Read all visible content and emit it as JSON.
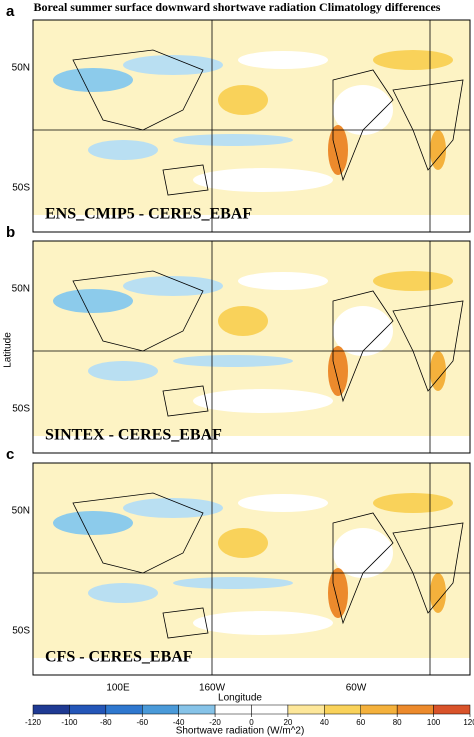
{
  "title": "Boreal summer surface downward shortwave radiation Climatology differences",
  "panels": [
    {
      "letter": "a",
      "label": "ENS_CMIP5 - CERES_EBAF"
    },
    {
      "letter": "b",
      "label": "SINTEX - CERES_EBAF"
    },
    {
      "letter": "c",
      "label": "CFS - CERES_EBAF"
    }
  ],
  "y_axis": {
    "label": "Latitude",
    "tick_labels": [
      "50N",
      "50S"
    ]
  },
  "x_axis": {
    "label": "Longitude",
    "tick_labels": [
      "100E",
      "160W",
      "60W"
    ]
  },
  "colorbar": {
    "label": "Shortwave radiation (W/m^2)",
    "lim": [
      -120,
      120
    ],
    "ticks": [
      -120,
      -100,
      -80,
      -60,
      -40,
      -20,
      0,
      20,
      40,
      60,
      80,
      100,
      120
    ],
    "colors": [
      "#1f3a93",
      "#2456b8",
      "#2f78cf",
      "#4a9ad9",
      "#86c3e8",
      "#ffffff",
      "#ffffff",
      "#fde79a",
      "#f9d25a",
      "#f4b13c",
      "#ec8a2c",
      "#d9532a"
    ]
  }
}
